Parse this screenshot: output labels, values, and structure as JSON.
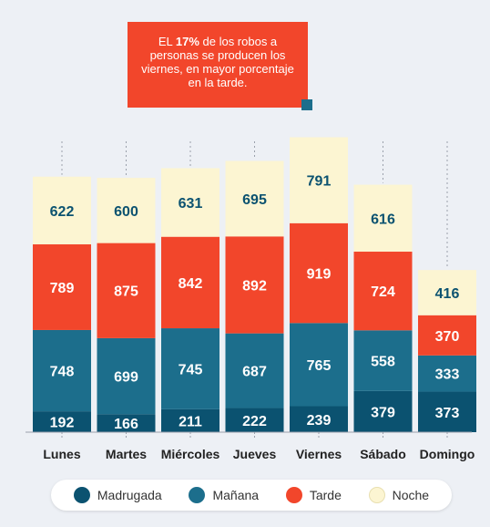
{
  "callout": {
    "pre": "EL ",
    "highlight": "17%",
    "post": " de los robos a personas se producen los viernes, en mayor porcentaje en la tarde."
  },
  "chart_data": {
    "type": "bar",
    "stacked": true,
    "categories": [
      "Lunes",
      "Martes",
      "Miércoles",
      "Jueves",
      "Viernes",
      "Sábado",
      "Domingo"
    ],
    "series": [
      {
        "name": "Madrugada",
        "color": "#0b5270",
        "values": [
          192,
          166,
          211,
          222,
          239,
          379,
          373
        ]
      },
      {
        "name": "Mañana",
        "color": "#1c6e8c",
        "values": [
          748,
          699,
          745,
          687,
          765,
          558,
          333
        ]
      },
      {
        "name": "Tarde",
        "color": "#f2462b",
        "values": [
          789,
          875,
          842,
          892,
          919,
          724,
          370
        ]
      },
      {
        "name": "Noche",
        "color": "#fcf5d2",
        "values": [
          622,
          600,
          631,
          695,
          791,
          616,
          416
        ]
      }
    ],
    "label_colors": {
      "dark": "#0b5270",
      "light": "#ffffff"
    },
    "grid": false,
    "legend_position": "bottom"
  }
}
